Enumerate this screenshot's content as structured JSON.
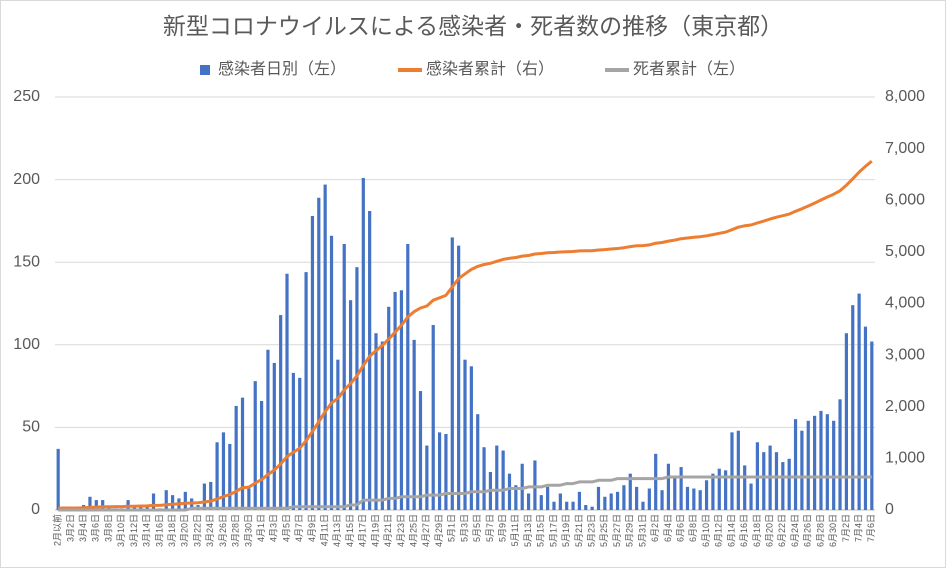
{
  "chart_data": {
    "type": "bar",
    "title": "新型コロナウイルスによる感染者・死者数の推移（東京都）",
    "categories": [
      "2月以前",
      null,
      "3月2日",
      null,
      "3月4日",
      null,
      "3月6日",
      null,
      "3月8日",
      null,
      "3月10日",
      null,
      "3月12日",
      null,
      "3月14日",
      null,
      "3月16日",
      null,
      "3月18日",
      null,
      "3月20日",
      null,
      "3月22日",
      null,
      "3月24日",
      null,
      "3月26日",
      null,
      "3月28日",
      null,
      "3月30日",
      null,
      "4月1日",
      null,
      "4月3日",
      null,
      "4月5日",
      null,
      "4月7日",
      null,
      "4月9日",
      null,
      "4月11日",
      null,
      "4月13日",
      null,
      "4月15日",
      null,
      "4月17日",
      null,
      "4月19日",
      null,
      "4月21日",
      null,
      "4月23日",
      null,
      "4月25日",
      null,
      "4月27日",
      null,
      "4月29日",
      null,
      "5月1日",
      null,
      "5月3日",
      null,
      "5月5日",
      null,
      "5月7日",
      null,
      "5月9日",
      null,
      "5月11日",
      null,
      "5月13日",
      null,
      "5月15日",
      null,
      "5月17日",
      null,
      "5月19日",
      null,
      "5月21日",
      null,
      "5月23日",
      null,
      "5月25日",
      null,
      "5月27日",
      null,
      "5月29日",
      null,
      "5月31日",
      null,
      "6月2日",
      null,
      "6月4日",
      null,
      "6月6日",
      null,
      "6月8日",
      null,
      "6月10日",
      null,
      "6月12日",
      null,
      "6月14日",
      null,
      "6月16日",
      null,
      "6月18日",
      null,
      "6月20日",
      null,
      "6月22日",
      null,
      "6月24日",
      null,
      "6月26日",
      null,
      "6月28日",
      null,
      "6月30日",
      null,
      "7月2日",
      null,
      "7月4日",
      null,
      "7月6日"
    ],
    "series": [
      {
        "name": "感染者日別（左）",
        "type": "bar",
        "color": "#4472c4",
        "axis": "y",
        "values": [
          37,
          1,
          1,
          0,
          3,
          8,
          6,
          6,
          2,
          1,
          1,
          6,
          2,
          3,
          2,
          10,
          1,
          12,
          9,
          7,
          11,
          7,
          3,
          16,
          17,
          41,
          47,
          40,
          63,
          68,
          13,
          78,
          66,
          97,
          89,
          118,
          143,
          83,
          80,
          144,
          178,
          189,
          197,
          166,
          91,
          161,
          127,
          147,
          201,
          181,
          107,
          102,
          123,
          132,
          133,
          161,
          103,
          72,
          39,
          112,
          47,
          46,
          165,
          160,
          91,
          87,
          58,
          38,
          23,
          39,
          36,
          22,
          15,
          28,
          10,
          30,
          9,
          14,
          5,
          10,
          5,
          5,
          11,
          3,
          2,
          14,
          8,
          10,
          11,
          15,
          22,
          14,
          5,
          13,
          34,
          12,
          28,
          20,
          26,
          14,
          13,
          12,
          18,
          22,
          25,
          24,
          47,
          48,
          27,
          16,
          41,
          35,
          39,
          35,
          29,
          31,
          55,
          48,
          54,
          57,
          60,
          58,
          54,
          67,
          107,
          124,
          131,
          111,
          102
        ]
      },
      {
        "name": "感染者累計（右）",
        "type": "line",
        "color": "#ed7d31",
        "axis": "y2",
        "values": [
          37,
          38,
          39,
          39,
          42,
          50,
          56,
          62,
          64,
          65,
          66,
          72,
          74,
          77,
          79,
          89,
          90,
          102,
          111,
          118,
          129,
          136,
          139,
          155,
          172,
          213,
          260,
          300,
          363,
          431,
          444,
          522,
          588,
          685,
          774,
          892,
          1035,
          1118,
          1198,
          1342,
          1520,
          1709,
          1906,
          2072,
          2163,
          2324,
          2451,
          2598,
          2799,
          2980,
          3087,
          3189,
          3312,
          3444,
          3577,
          3738,
          3841,
          3913,
          3952,
          4064,
          4111,
          4157,
          4322,
          4482,
          4573,
          4660,
          4718,
          4756,
          4779,
          4818,
          4854,
          4876,
          4891,
          4919,
          4929,
          4959,
          4968,
          4982,
          4987,
          4997,
          5002,
          5007,
          5018,
          5021,
          5023,
          5037,
          5045,
          5055,
          5066,
          5081,
          5103,
          5117,
          5122,
          5135,
          5169,
          5181,
          5209,
          5229,
          5255,
          5269,
          5282,
          5294,
          5312,
          5334,
          5359,
          5383,
          5430,
          5478,
          5505,
          5521,
          5562,
          5597,
          5636,
          5671,
          5700,
          5731,
          5786,
          5834,
          5888,
          5945,
          6005,
          6063,
          6117,
          6184,
          6291,
          6415,
          6546,
          6657,
          6759
        ]
      },
      {
        "name": "死者累計（左）",
        "type": "line",
        "color": "#a5a5a5",
        "axis": "y",
        "values": [
          0,
          0,
          0,
          0,
          0,
          0,
          0,
          0,
          0,
          0,
          0,
          0,
          0,
          0,
          0,
          0,
          0,
          0,
          0,
          0,
          0,
          1,
          1,
          1,
          1,
          1,
          1,
          1,
          1,
          1,
          1,
          1,
          1,
          1,
          1,
          1,
          1,
          2,
          2,
          2,
          2,
          2,
          2,
          2,
          2,
          2,
          3,
          3,
          6,
          6,
          6,
          6,
          7,
          7,
          8,
          8,
          8,
          8,
          9,
          9,
          9,
          10,
          10,
          10,
          10,
          11,
          11,
          11,
          12,
          12,
          12,
          13,
          13,
          13,
          14,
          14,
          14,
          15,
          15,
          15,
          16,
          16,
          17,
          17,
          17,
          18,
          18,
          18,
          19,
          19,
          19,
          19,
          19,
          19,
          19,
          19,
          20,
          20,
          20,
          20,
          20,
          20,
          20,
          20,
          20,
          20,
          20,
          20,
          20,
          20,
          20,
          20,
          20,
          20,
          20,
          20,
          20,
          20,
          20,
          20,
          20,
          20,
          20,
          20,
          20,
          20,
          20,
          20,
          20
        ]
      }
    ],
    "ylim": [
      0,
      250
    ],
    "yticks": [
      0,
      50,
      100,
      150,
      200,
      250
    ],
    "y2lim": [
      0,
      8000
    ],
    "y2ticks": [
      0,
      {
        "value": 1000,
        "label": "1,000"
      },
      {
        "value": 2000,
        "label": "2,000"
      },
      {
        "value": 3000,
        "label": "3,000"
      },
      {
        "value": 4000,
        "label": "4,000"
      },
      {
        "value": 5000,
        "label": "5,000"
      },
      {
        "value": 6000,
        "label": "6,000"
      },
      {
        "value": 7000,
        "label": "7,000"
      },
      {
        "value": 8000,
        "label": "8,000"
      }
    ],
    "grid": true,
    "legend": "top"
  }
}
